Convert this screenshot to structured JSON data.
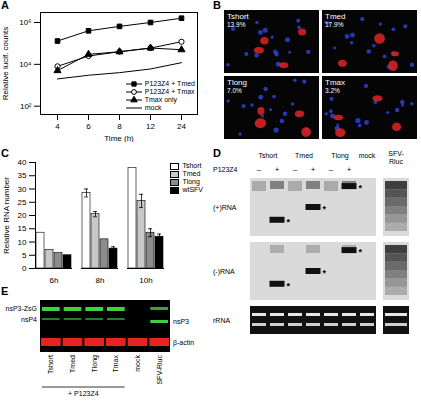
{
  "chart_data": [
    {
      "type": "line",
      "x_label": "Time (h)",
      "y_label": "Relative lucif. counts",
      "categories": [
        "4",
        "6",
        "8",
        "12",
        "24"
      ],
      "log": "y",
      "ylim": [
        40,
        3000000
      ],
      "yticks": [
        {
          "value": 100,
          "label": "10²"
        },
        {
          "value": 10000,
          "label": "10⁴"
        },
        {
          "value": 1000000,
          "label": "10⁶"
        }
      ],
      "legend": "lower right",
      "series": [
        {
          "name": "P123Z4 + Tmed",
          "color": "#000000",
          "marker": "square",
          "values": [
            130000,
            400000,
            650000,
            1000000,
            1600000
          ]
        },
        {
          "name": "P123Z4 + Tmax",
          "color": "#000000",
          "marker": "circle-open",
          "values": [
            8000,
            25000,
            40000,
            60000,
            120000
          ]
        },
        {
          "name": "Tmax only",
          "color": "#000000",
          "marker": "triangle",
          "values": [
            5000,
            30000,
            40000,
            60000,
            50000
          ]
        },
        {
          "name": "mock",
          "color": "#000000",
          "marker": "none",
          "values": [
            2000,
            3000,
            4000,
            6000,
            12000
          ]
        }
      ]
    },
    {
      "type": "bar",
      "y_label": "Relative RNA number",
      "categories": [
        "6h",
        "8h",
        "10h"
      ],
      "ylim": [
        0,
        40
      ],
      "yticks": [
        0,
        5,
        10,
        15,
        20,
        25,
        30,
        35,
        40
      ],
      "legend": "upper right",
      "series": [
        {
          "name": "Tshort",
          "color": "#ffffff",
          "values": [
            13.5,
            28.5,
            38
          ],
          "errors": [
            null,
            1.5,
            null
          ]
        },
        {
          "name": "Tmed",
          "color": "#c8c8c8",
          "values": [
            7,
            20.5,
            25.5
          ],
          "errors": [
            null,
            1,
            2.5
          ]
        },
        {
          "name": "Tlong",
          "color": "#8c8c8c",
          "values": [
            5.8,
            11,
            13.5
          ],
          "errors": [
            null,
            null,
            1.5
          ]
        },
        {
          "name": "wtSFV",
          "color": "#000000",
          "values": [
            5,
            7.5,
            12
          ],
          "errors": [
            null,
            0.7,
            1
          ]
        }
      ]
    }
  ],
  "figure": {
    "panel_labels": [
      "A",
      "B",
      "C",
      "D",
      "E"
    ],
    "B": {
      "images": [
        {
          "label": "Tshort",
          "value": "13.9%"
        },
        {
          "label": "Tmed",
          "value": "17.9%"
        },
        {
          "label": "Tlong",
          "value": "7.0%"
        },
        {
          "label": "Tmax",
          "value": "3.2%"
        }
      ]
    },
    "D": {
      "header": "P123Z4",
      "groups": [
        "Tshort",
        "Tmed",
        "Tlong"
      ],
      "signs": [
        "–",
        "+"
      ],
      "lanes_extra": [
        "mock",
        "SFV-Rluc"
      ],
      "blots": [
        "(+)RNA",
        "(-)RNA",
        "rRNA"
      ],
      "band_mark": "*"
    },
    "E": {
      "left_labels": [
        "nsP3-ZsG",
        "nsP4"
      ],
      "right_labels": [
        "nsP3",
        "β-actin"
      ],
      "lanes": [
        "Tshort",
        "Tmed",
        "Tlong",
        "Tmax",
        "mock",
        "SFV-Rluc"
      ],
      "bracket": {
        "label": "+ P123Z4",
        "over": [
          "Tshort",
          "Tmed",
          "Tlong",
          "Tmax"
        ]
      }
    }
  }
}
